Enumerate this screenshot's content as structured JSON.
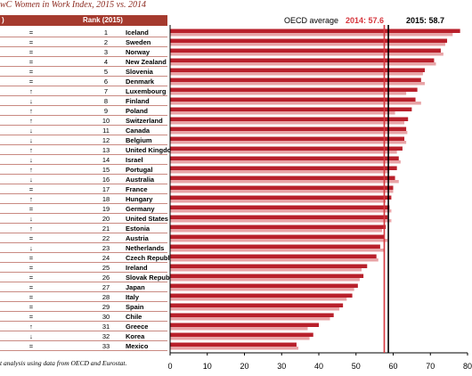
{
  "title": "wC Women in Work Index, 2015 vs. 2014",
  "table": {
    "header_change": ")",
    "header_rank": "Rank (2015)",
    "rows": [
      {
        "change": "=",
        "rank": "1",
        "country": "Iceland"
      },
      {
        "change": "=",
        "rank": "2",
        "country": "Sweden"
      },
      {
        "change": "=",
        "rank": "3",
        "country": "Norway"
      },
      {
        "change": "=",
        "rank": "4",
        "country": "New Zealand"
      },
      {
        "change": "=",
        "rank": "5",
        "country": "Slovenia"
      },
      {
        "change": "=",
        "rank": "6",
        "country": "Denmark"
      },
      {
        "change": "↑",
        "rank": "7",
        "country": "Luxembourg"
      },
      {
        "change": "↓",
        "rank": "8",
        "country": "Finland"
      },
      {
        "change": "↑",
        "rank": "9",
        "country": "Poland"
      },
      {
        "change": "↑",
        "rank": "10",
        "country": "Switzerland"
      },
      {
        "change": "↓",
        "rank": "11",
        "country": "Canada"
      },
      {
        "change": "↓",
        "rank": "12",
        "country": "Belgium"
      },
      {
        "change": "↑",
        "rank": "13",
        "country": "United Kingdom"
      },
      {
        "change": "↓",
        "rank": "14",
        "country": "Israel"
      },
      {
        "change": "↑",
        "rank": "15",
        "country": "Portugal"
      },
      {
        "change": "↓",
        "rank": "16",
        "country": "Australia"
      },
      {
        "change": "=",
        "rank": "17",
        "country": "France"
      },
      {
        "change": "↑",
        "rank": "18",
        "country": "Hungary"
      },
      {
        "change": "=",
        "rank": "19",
        "country": "Germany"
      },
      {
        "change": "↓",
        "rank": "20",
        "country": "United States"
      },
      {
        "change": "↑",
        "rank": "21",
        "country": "Estonia"
      },
      {
        "change": "=",
        "rank": "22",
        "country": "Austria"
      },
      {
        "change": "↓",
        "rank": "23",
        "country": "Netherlands"
      },
      {
        "change": "=",
        "rank": "24",
        "country": "Czech Republic"
      },
      {
        "change": "=",
        "rank": "25",
        "country": "Ireland"
      },
      {
        "change": "=",
        "rank": "26",
        "country": "Slovak Republic"
      },
      {
        "change": "=",
        "rank": "27",
        "country": "Japan"
      },
      {
        "change": "=",
        "rank": "28",
        "country": "Italy"
      },
      {
        "change": "=",
        "rank": "29",
        "country": "Spain"
      },
      {
        "change": "=",
        "rank": "30",
        "country": "Chile"
      },
      {
        "change": "↑",
        "rank": "31",
        "country": "Greece"
      },
      {
        "change": "↓",
        "rank": "32",
        "country": "Korea"
      },
      {
        "change": "=",
        "rank": "33",
        "country": "Mexico"
      }
    ]
  },
  "source_note": "t analysis using data from OECD and Eurostat.",
  "colors": {
    "bar_2015": "#b8202b",
    "bar_2014": "#e8a3a6",
    "line_2014": "#d6353c",
    "line_2015": "#000000",
    "header_bg": "#a53a2e"
  },
  "chart_data": {
    "type": "bar",
    "orientation": "horizontal",
    "categories": [
      "Iceland",
      "Sweden",
      "Norway",
      "New Zealand",
      "Slovenia",
      "Denmark",
      "Luxembourg",
      "Finland",
      "Poland",
      "Switzerland",
      "Canada",
      "Belgium",
      "United Kingdom",
      "Israel",
      "Portugal",
      "Australia",
      "France",
      "Hungary",
      "Germany",
      "United States",
      "Estonia",
      "Austria",
      "Netherlands",
      "Czech Republic",
      "Ireland",
      "Slovak Republic",
      "Japan",
      "Italy",
      "Spain",
      "Chile",
      "Greece",
      "Korea",
      "Mexico"
    ],
    "series": [
      {
        "values": [
          78.0,
          74.5,
          72.8,
          71.0,
          68.5,
          67.5,
          66.5,
          66.0,
          65.0,
          64.0,
          63.5,
          63.0,
          62.5,
          61.5,
          61.0,
          60.5,
          60.0,
          59.5,
          59.0,
          58.5,
          58.0,
          57.5,
          56.5,
          55.5,
          53.0,
          52.0,
          50.5,
          49.0,
          46.5,
          44.0,
          40.0,
          38.5,
          34.0
        ]
      },
      {
        "values": [
          76.0,
          74.0,
          73.5,
          71.5,
          68.0,
          68.5,
          63.5,
          67.5,
          60.5,
          63.0,
          63.8,
          63.5,
          61.0,
          62.0,
          59.0,
          61.5,
          60.0,
          58.0,
          59.5,
          59.5,
          57.0,
          58.5,
          57.5,
          56.0,
          51.5,
          51.0,
          49.5,
          47.5,
          45.5,
          43.0,
          37.0,
          37.5,
          34.5
        ]
      }
    ],
    "reference_lines": [
      {
        "label": "2014: 57.6",
        "value": 57.6
      },
      {
        "label": "2015: 58.7",
        "value": 58.7
      }
    ],
    "reference_title": "OECD average",
    "xlim": [
      0,
      80
    ],
    "xticks": [
      0,
      10,
      20,
      30,
      40,
      50,
      60,
      70,
      80
    ],
    "grid": false
  }
}
